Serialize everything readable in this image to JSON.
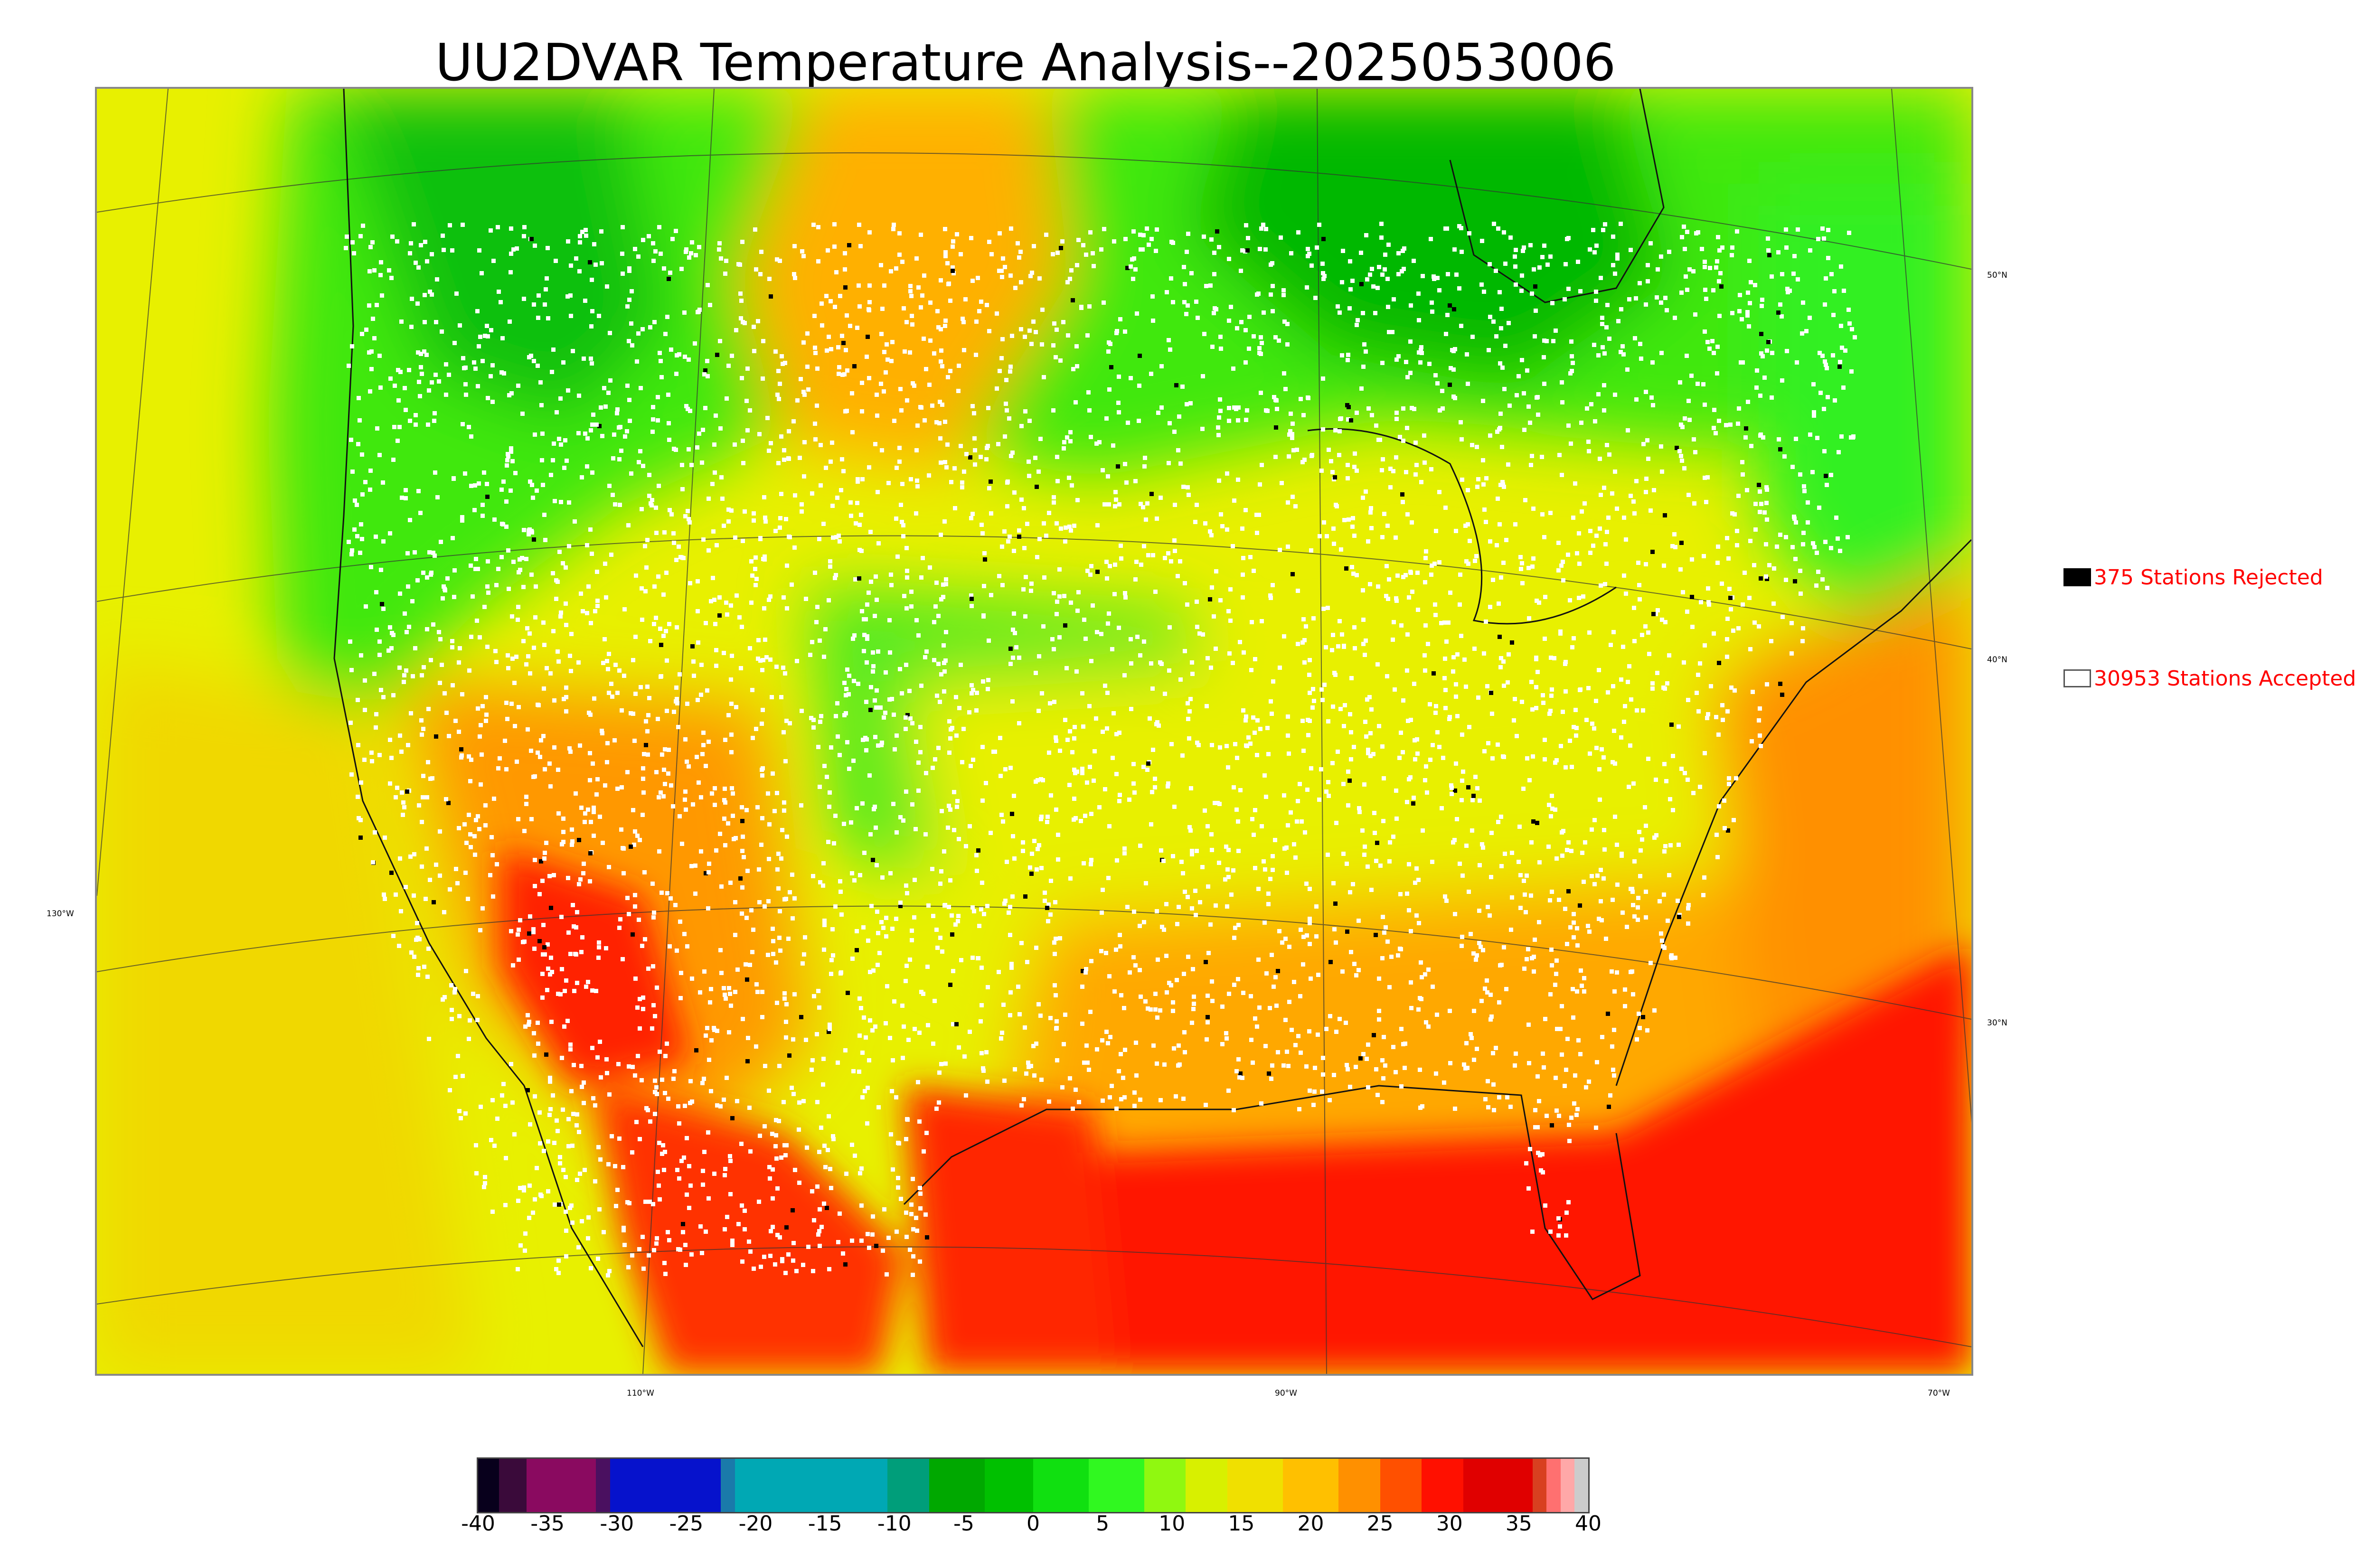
{
  "title": "UU2DVAR Temperature Analysis--2025053006",
  "legend": {
    "rejected_label": "375 Stations Rejected",
    "accepted_label": "30953 Stations Accepted",
    "rejected_color": "#000000",
    "accepted_color": "#ffffff",
    "text_color": "#ff0000"
  },
  "longitude_labels": [
    "130°W",
    "110°W",
    "90°W",
    "70°W"
  ],
  "latitude_labels": [
    "50°N",
    "40°N",
    "30°N"
  ],
  "colorbar": {
    "ticks": [
      "-40",
      "-35",
      "-30",
      "-25",
      "-20",
      "-15",
      "-10",
      "-5",
      "0",
      "5",
      "10",
      "15",
      "20",
      "25",
      "30",
      "35",
      "40"
    ],
    "min": -40,
    "max": 40,
    "bands": [
      {
        "from": -40,
        "to": -38.5,
        "color": "#08001c"
      },
      {
        "from": -38.5,
        "to": -36.5,
        "color": "#3a0a3a"
      },
      {
        "from": -36.5,
        "to": -31.5,
        "color": "#8a0a60"
      },
      {
        "from": -31.5,
        "to": -30.5,
        "color": "#4a1060"
      },
      {
        "from": -30.5,
        "to": -22.5,
        "color": "#0612cc"
      },
      {
        "from": -22.5,
        "to": -21.5,
        "color": "#1a7aaa"
      },
      {
        "from": -21.5,
        "to": -10.5,
        "color": "#00a8b4"
      },
      {
        "from": -10.5,
        "to": -7.5,
        "color": "#009e7a"
      },
      {
        "from": -7.5,
        "to": -3.5,
        "color": "#00a800"
      },
      {
        "from": -3.5,
        "to": 0,
        "color": "#00c000"
      },
      {
        "from": 0,
        "to": 4,
        "color": "#10e010"
      },
      {
        "from": 4,
        "to": 8,
        "color": "#30f820"
      },
      {
        "from": 8,
        "to": 11,
        "color": "#90f810"
      },
      {
        "from": 11,
        "to": 14,
        "color": "#d8f000"
      },
      {
        "from": 14,
        "to": 18,
        "color": "#f0e000"
      },
      {
        "from": 18,
        "to": 22,
        "color": "#ffc000"
      },
      {
        "from": 22,
        "to": 25,
        "color": "#ff9000"
      },
      {
        "from": 25,
        "to": 28,
        "color": "#ff5000"
      },
      {
        "from": 28,
        "to": 31,
        "color": "#ff1000"
      },
      {
        "from": 31,
        "to": 36,
        "color": "#e00000"
      },
      {
        "from": 36,
        "to": 37,
        "color": "#d84020"
      },
      {
        "from": 37,
        "to": 38,
        "color": "#ff7070"
      },
      {
        "from": 38,
        "to": 39,
        "color": "#ffa8a8"
      },
      {
        "from": 39,
        "to": 40,
        "color": "#cccccc"
      }
    ]
  }
}
